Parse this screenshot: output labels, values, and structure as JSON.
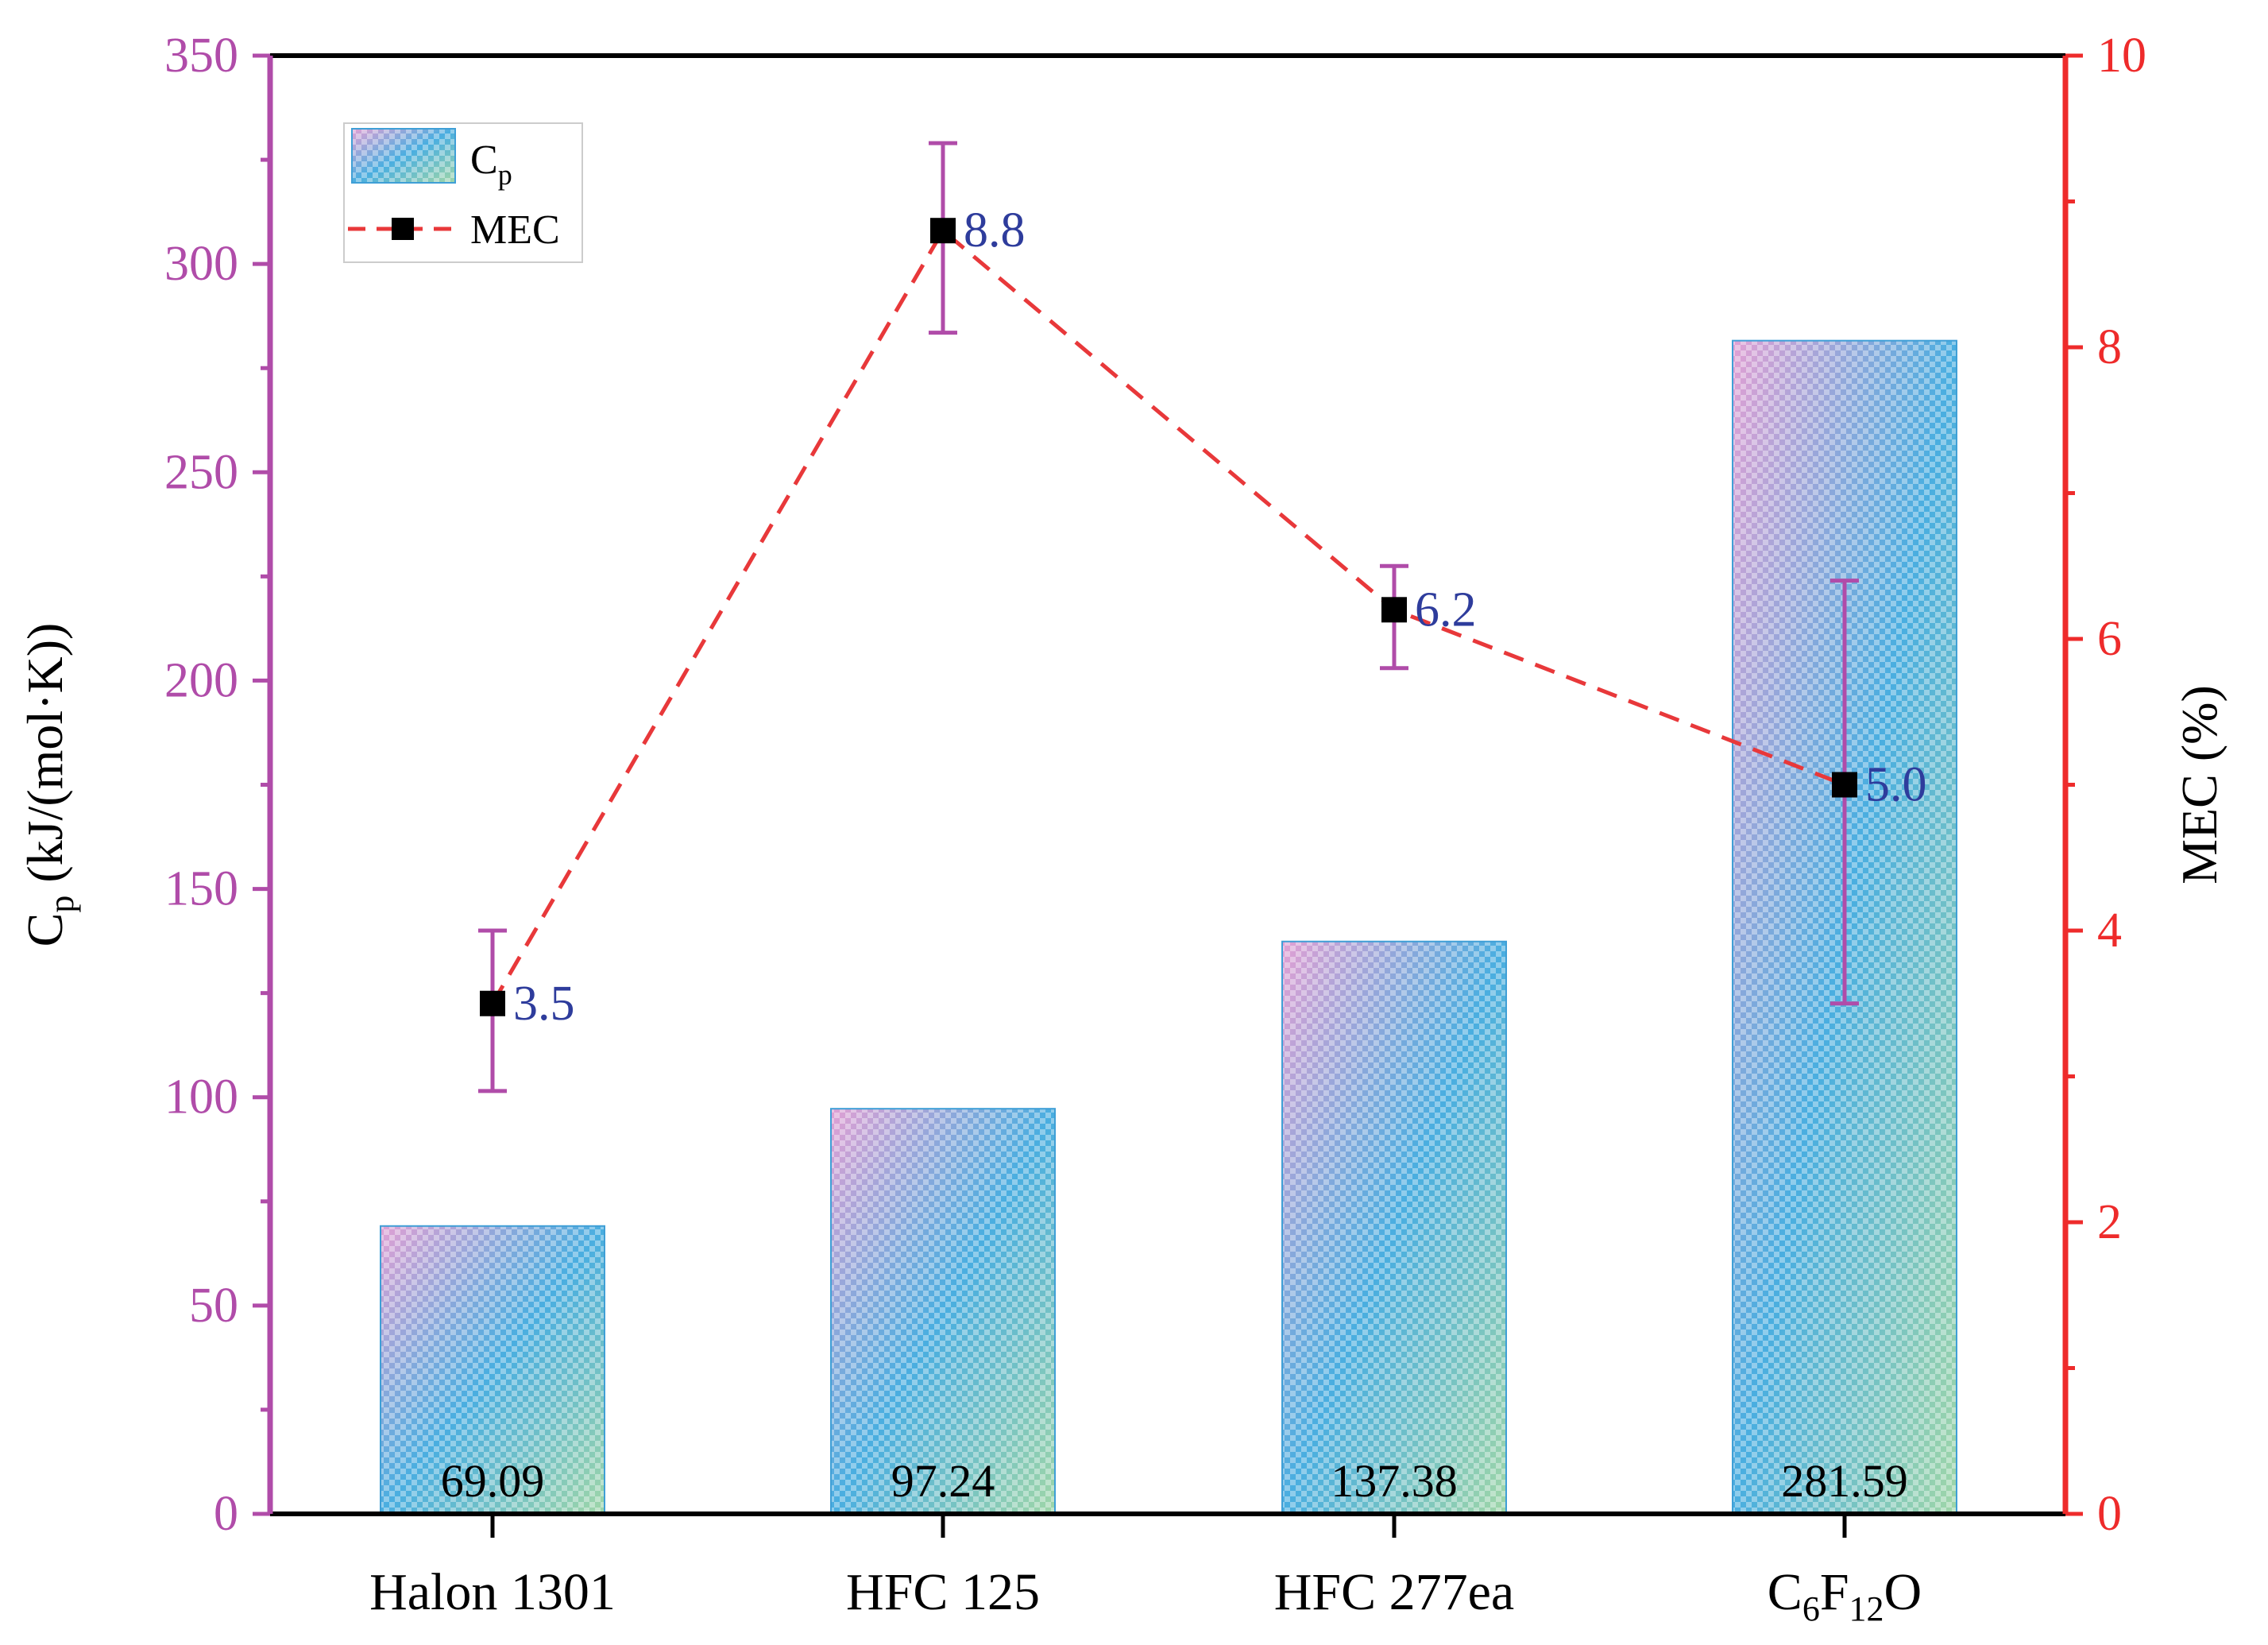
{
  "chart_data": {
    "type": "bar",
    "categories": [
      "Halon 1301",
      "HFC 125",
      "HFC 277ea",
      "C6F12O"
    ],
    "category_labels": [
      {
        "base": "Halon 1301"
      },
      {
        "base": "HFC 125"
      },
      {
        "base": "HFC 277ea"
      },
      {
        "parts": [
          {
            "t": "C",
            "sub": false
          },
          {
            "t": "6",
            "sub": true
          },
          {
            "t": "F",
            "sub": false
          },
          {
            "t": "12",
            "sub": true
          },
          {
            "t": "O",
            "sub": false
          }
        ]
      }
    ],
    "series": [
      {
        "name": "Cp",
        "legend_main": "C",
        "legend_sub": "p",
        "kind": "bar",
        "axis": "left",
        "values": [
          69.09,
          97.24,
          137.38,
          281.59
        ],
        "value_labels": [
          "69.09",
          "97.24",
          "137.38",
          "281.59"
        ]
      },
      {
        "name": "MEC",
        "legend_main": "MEC",
        "kind": "line",
        "axis": "right",
        "values": [
          3.5,
          8.8,
          6.2,
          5.0
        ],
        "value_labels": [
          "3.5",
          "8.8",
          "6.2",
          "5.0"
        ],
        "error_low": [
          2.9,
          8.1,
          5.8,
          3.5
        ],
        "error_high": [
          4.0,
          9.4,
          6.5,
          6.4
        ]
      }
    ],
    "y_left": {
      "label_main": "C",
      "label_sub": "p",
      "label_rest": " (kJ/(mol·K))",
      "lim": [
        0,
        350
      ],
      "ticks": [
        0,
        50,
        100,
        150,
        200,
        250,
        300,
        350
      ],
      "tick_labels": [
        "0",
        "50",
        "100",
        "150",
        "200",
        "250",
        "300",
        "350"
      ]
    },
    "y_right": {
      "label": "MEC (%)",
      "lim": [
        0,
        10
      ],
      "ticks": [
        0,
        2,
        4,
        6,
        8,
        10
      ],
      "tick_labels": [
        "0",
        "2",
        "4",
        "6",
        "8",
        "10"
      ]
    },
    "legend_position": "top-left",
    "grid": false
  },
  "colors": {
    "left_axis": "#b04ca9",
    "right_axis": "#ee2b2b",
    "line": "#e8383a",
    "marker": "#000000",
    "errorbar": "#b04ca9",
    "mec_label": "#2e3c9c",
    "bar_edge": "#3f9fd6",
    "bar_blue": "#4aaee0",
    "bar_pink": "#e0a0d4",
    "bar_green": "#9fd6a8",
    "text": "#000000"
  }
}
